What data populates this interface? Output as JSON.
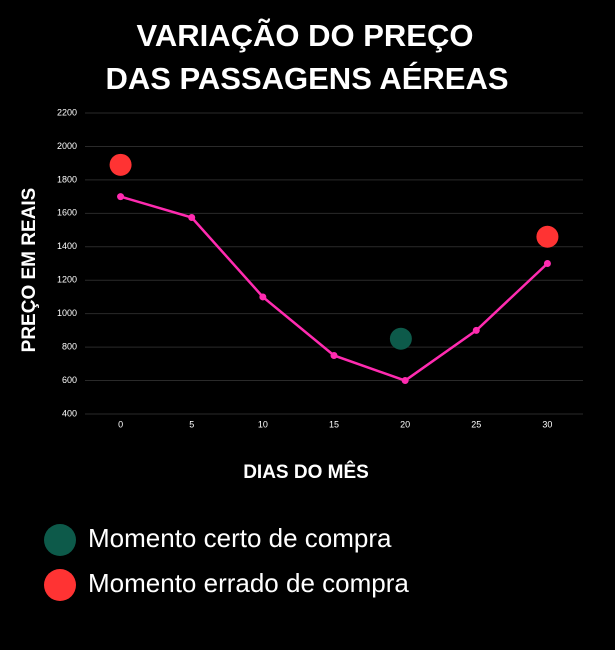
{
  "chart_data": {
    "type": "line",
    "title": [
      "VARIAÇÃO DO PREÇO",
      "DAS PASSAGENS AÉREAS"
    ],
    "x_label": "DIAS DO MÊS",
    "y_label": "PREÇO EM REAIS",
    "xlim": [
      -2.5,
      32.5
    ],
    "xticks": [
      0,
      5,
      10,
      15,
      20,
      25,
      30
    ],
    "ylim": [
      400,
      2200
    ],
    "yticks": [
      400,
      600,
      800,
      1000,
      1200,
      1400,
      1600,
      1800,
      2000,
      2200
    ],
    "grid": true,
    "series": [
      {
        "type": "line",
        "color": "#ff2bb0",
        "x": [
          0,
          5,
          10,
          15,
          20,
          25,
          30
        ],
        "values": [
          1700,
          1575,
          1100,
          750,
          600,
          900,
          1300
        ]
      },
      {
        "type": "scatter",
        "name": "Momento certo de compra",
        "color": "#0d5a4a",
        "x": [
          19.7
        ],
        "values": [
          850
        ]
      },
      {
        "type": "scatter",
        "name": "Momento errado de compra",
        "color": "#ff3333",
        "x": [
          0,
          30
        ],
        "values": [
          1890,
          1460
        ]
      }
    ]
  }
}
